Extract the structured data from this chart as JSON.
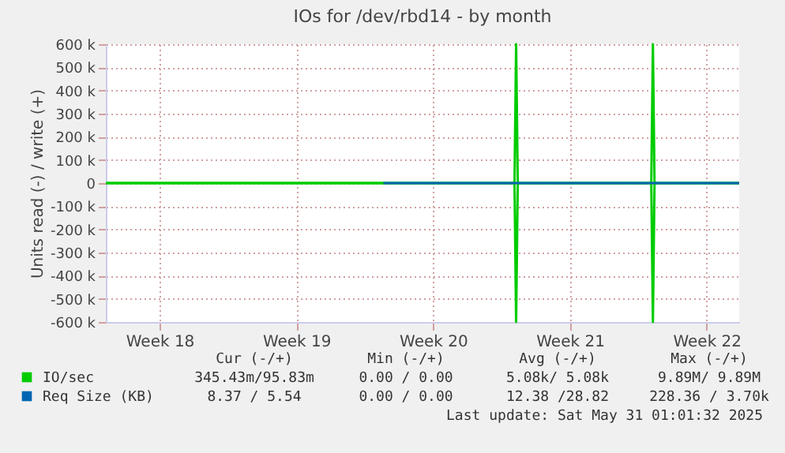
{
  "chart_data": {
    "type": "line",
    "title": "IOs for /dev/rbd14 - by month",
    "ylabel": "Units read (-) / write (+)",
    "xlim": [
      "2025-04-28T18:00",
      "2025-05-31T04:00"
    ],
    "xticks": [
      {
        "value": "2025-05-01T12:00",
        "label": "Week 18"
      },
      {
        "value": "2025-05-08T12:00",
        "label": "Week 19"
      },
      {
        "value": "2025-05-15T12:00",
        "label": "Week 20"
      },
      {
        "value": "2025-05-22T12:00",
        "label": "Week 21"
      },
      {
        "value": "2025-05-29T12:00",
        "label": "Week 22"
      }
    ],
    "ylim": [
      -600000,
      600000
    ],
    "yticks": [
      {
        "value": 600000,
        "label": "600 k"
      },
      {
        "value": 500000,
        "label": "500 k"
      },
      {
        "value": 400000,
        "label": "400 k"
      },
      {
        "value": 300000,
        "label": "300 k"
      },
      {
        "value": 200000,
        "label": "200 k"
      },
      {
        "value": 100000,
        "label": "100 k"
      },
      0,
      {
        "value": -100000,
        "label": "-100 k"
      },
      {
        "value": -200000,
        "label": "-200 k"
      },
      {
        "value": -300000,
        "label": "-300 k"
      },
      {
        "value": -400000,
        "label": "-400 k"
      },
      {
        "value": -500000,
        "label": "-500 k"
      },
      {
        "value": -600000,
        "label": "-600 k"
      }
    ],
    "grid": true,
    "legend": "bottom",
    "series": [
      {
        "name": "IO/sec",
        "color": "#00cc00",
        "x": [
          "2025-04-28T18:00",
          "2025-05-19T16:00",
          "2025-05-19T18:00",
          "2025-05-19T20:00",
          "2025-05-26T16:00",
          "2025-05-26T18:00",
          "2025-05-26T20:00",
          "2025-05-31T04:00"
        ],
        "values": [
          0,
          0,
          600000,
          0,
          0,
          600000,
          0,
          0
        ]
      },
      {
        "color": "#00cc00",
        "x": [
          "2025-04-28T18:00",
          "2025-05-19T16:00",
          "2025-05-19T18:00",
          "2025-05-19T20:00",
          "2025-05-26T16:00",
          "2025-05-26T18:00",
          "2025-05-26T20:00",
          "2025-05-31T04:00"
        ],
        "values": [
          0,
          0,
          -600000,
          0,
          0,
          -600000,
          0,
          0
        ]
      },
      {
        "name": "Req Size (KB)",
        "color": "#0066b3",
        "x": [
          "2025-05-12T23:00",
          "2025-05-31T04:00"
        ],
        "values": [
          0,
          0
        ]
      }
    ],
    "annotations": [
      "Cur (-/+)",
      "Min (-/+)",
      "Avg (-/+)",
      "Max (-/+)",
      "345.43m/95.83m",
      "0.00 / 0.00",
      "5.08k/ 5.08k",
      "9.89M/ 9.89M",
      "8.37 / 5.54",
      "0.00 / 0.00",
      "12.38 /28.82",
      "228.36 / 3.70k",
      "Last update: Sat May 31 01:01:32 2025"
    ]
  }
}
